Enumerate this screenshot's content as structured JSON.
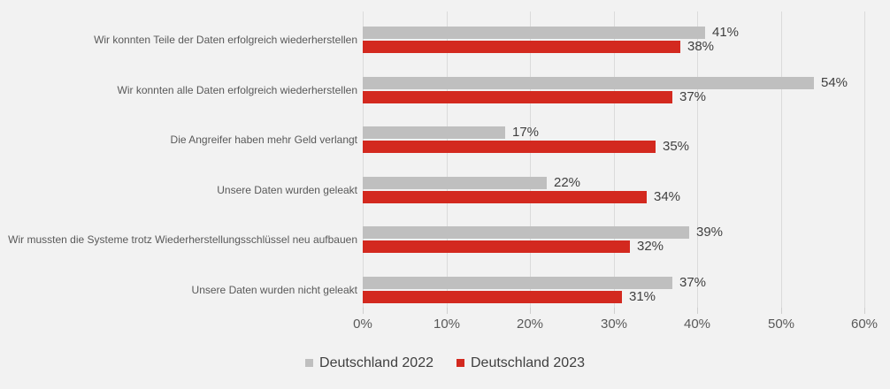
{
  "chart_data": {
    "type": "bar",
    "orientation": "horizontal",
    "title": "",
    "categories": [
      "Wir konnten Teile der Daten erfolgreich wiederherstellen",
      "Wir konnten alle Daten erfolgreich wiederherstellen",
      "Die Angreifer haben mehr Geld verlangt",
      "Unsere Daten wurden geleakt",
      "Wir mussten die Systeme trotz Wiederherstellungsschlüssel neu aufbauen",
      "Unsere Daten wurden nicht geleakt"
    ],
    "series": [
      {
        "name": "Deutschland 2022",
        "color": "#BFBFBF",
        "values": [
          41,
          54,
          17,
          22,
          39,
          37
        ]
      },
      {
        "name": "Deutschland 2023",
        "color": "#D3291F",
        "values": [
          38,
          37,
          35,
          34,
          32,
          31
        ]
      }
    ],
    "value_suffix": "%",
    "data_labels": [
      "41%",
      "38%",
      "54%",
      "37%",
      "17%",
      "35%",
      "22%",
      "34%",
      "39%",
      "32%",
      "37%",
      "31%"
    ],
    "x_tick_labels": [
      "0%",
      "10%",
      "20%",
      "30%",
      "40%",
      "50%",
      "60%"
    ],
    "xlim": [
      0,
      60
    ],
    "grid": "vertical-on",
    "legend_position": "bottom-center",
    "colors": {
      "background": "#F2F2F2",
      "gridline": "#DBDBDB",
      "tick": "#CFCFCF",
      "category_text": "#595959",
      "axis_text": "#595959",
      "value_text": "#404040",
      "legend_text": "#404040"
    }
  }
}
